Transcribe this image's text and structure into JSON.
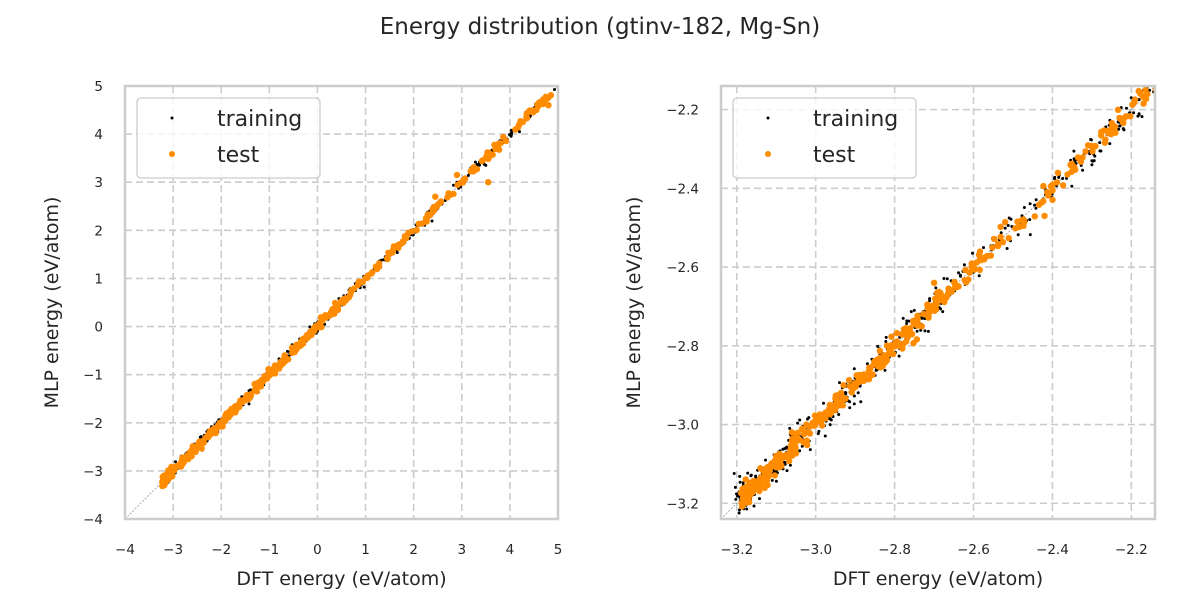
{
  "figure": {
    "title": "Energy distribution (gtinv-182, Mg-Sn)"
  },
  "colors": {
    "training": "#000000",
    "test": "#ff8c00",
    "grid": "#cccccc",
    "spine": "#cccccc",
    "diagonal": "#999999",
    "text": "#262626"
  },
  "chart_data": [
    {
      "type": "scatter",
      "title": "",
      "xlabel": "DFT energy (eV/atom)",
      "ylabel": "MLP energy (eV/atom)",
      "xlim": [
        -4,
        5
      ],
      "ylim": [
        -4,
        5
      ],
      "xticks": [
        -4,
        -3,
        -2,
        -1,
        0,
        1,
        2,
        3,
        4,
        5
      ],
      "yticks": [
        -4,
        -3,
        -2,
        -1,
        0,
        1,
        2,
        3,
        4,
        5
      ],
      "xtick_labels": [
        "−4",
        "−3",
        "−2",
        "−1",
        "0",
        "1",
        "2",
        "3",
        "4",
        "5"
      ],
      "ytick_labels": [
        "−4",
        "−3",
        "−2",
        "−1",
        "0",
        "1",
        "2",
        "3",
        "4",
        "5"
      ],
      "grid": true,
      "legend": {
        "position": "top-left",
        "entries": [
          "training",
          "test"
        ]
      },
      "diagonal": true,
      "series": [
        {
          "name": "training",
          "x_range": [
            -3.2,
            4.95
          ],
          "spread": 0.05,
          "outliers": [
            [
              3.5,
              3.35
            ],
            [
              4.2,
              4.05
            ],
            [
              2.9,
              3.0
            ]
          ]
        },
        {
          "name": "test",
          "x_range": [
            -3.2,
            4.85
          ],
          "spread": 0.04,
          "outliers": [
            [
              3.55,
              3.0
            ],
            [
              2.45,
              2.7
            ],
            [
              2.9,
              3.15
            ],
            [
              4.8,
              4.6
            ]
          ]
        }
      ]
    },
    {
      "type": "scatter",
      "title": "",
      "xlabel": "DFT energy (eV/atom)",
      "ylabel": "MLP energy (eV/atom)",
      "xlim": [
        -3.24,
        -2.14
      ],
      "ylim": [
        -3.24,
        -2.14
      ],
      "xticks": [
        -3.2,
        -3.0,
        -2.8,
        -2.6,
        -2.4,
        -2.2
      ],
      "yticks": [
        -3.2,
        -3.0,
        -2.8,
        -2.6,
        -2.4,
        -2.2
      ],
      "xtick_labels": [
        "−3.2",
        "−3.0",
        "−2.8",
        "−2.6",
        "−2.4",
        "−2.2"
      ],
      "ytick_labels": [
        "−3.2",
        "−3.0",
        "−2.8",
        "−2.6",
        "−2.4",
        "−2.2"
      ],
      "grid": true,
      "legend": {
        "position": "top-left",
        "entries": [
          "training",
          "test"
        ]
      },
      "diagonal": true,
      "series": [
        {
          "name": "training",
          "x_range": [
            -3.19,
            -2.14
          ],
          "spread": 0.018,
          "outliers": [
            [
              -2.3,
              -2.33
            ],
            [
              -2.2,
              -2.17
            ],
            [
              -2.75,
              -2.71
            ]
          ]
        },
        {
          "name": "test",
          "x_range": [
            -3.18,
            -2.14
          ],
          "spread": 0.012,
          "outliers": [
            [
              -3.1,
              -3.08
            ],
            [
              -3.06,
              -3.02
            ],
            [
              -2.7,
              -2.64
            ],
            [
              -2.42,
              -2.47
            ]
          ]
        }
      ]
    }
  ]
}
